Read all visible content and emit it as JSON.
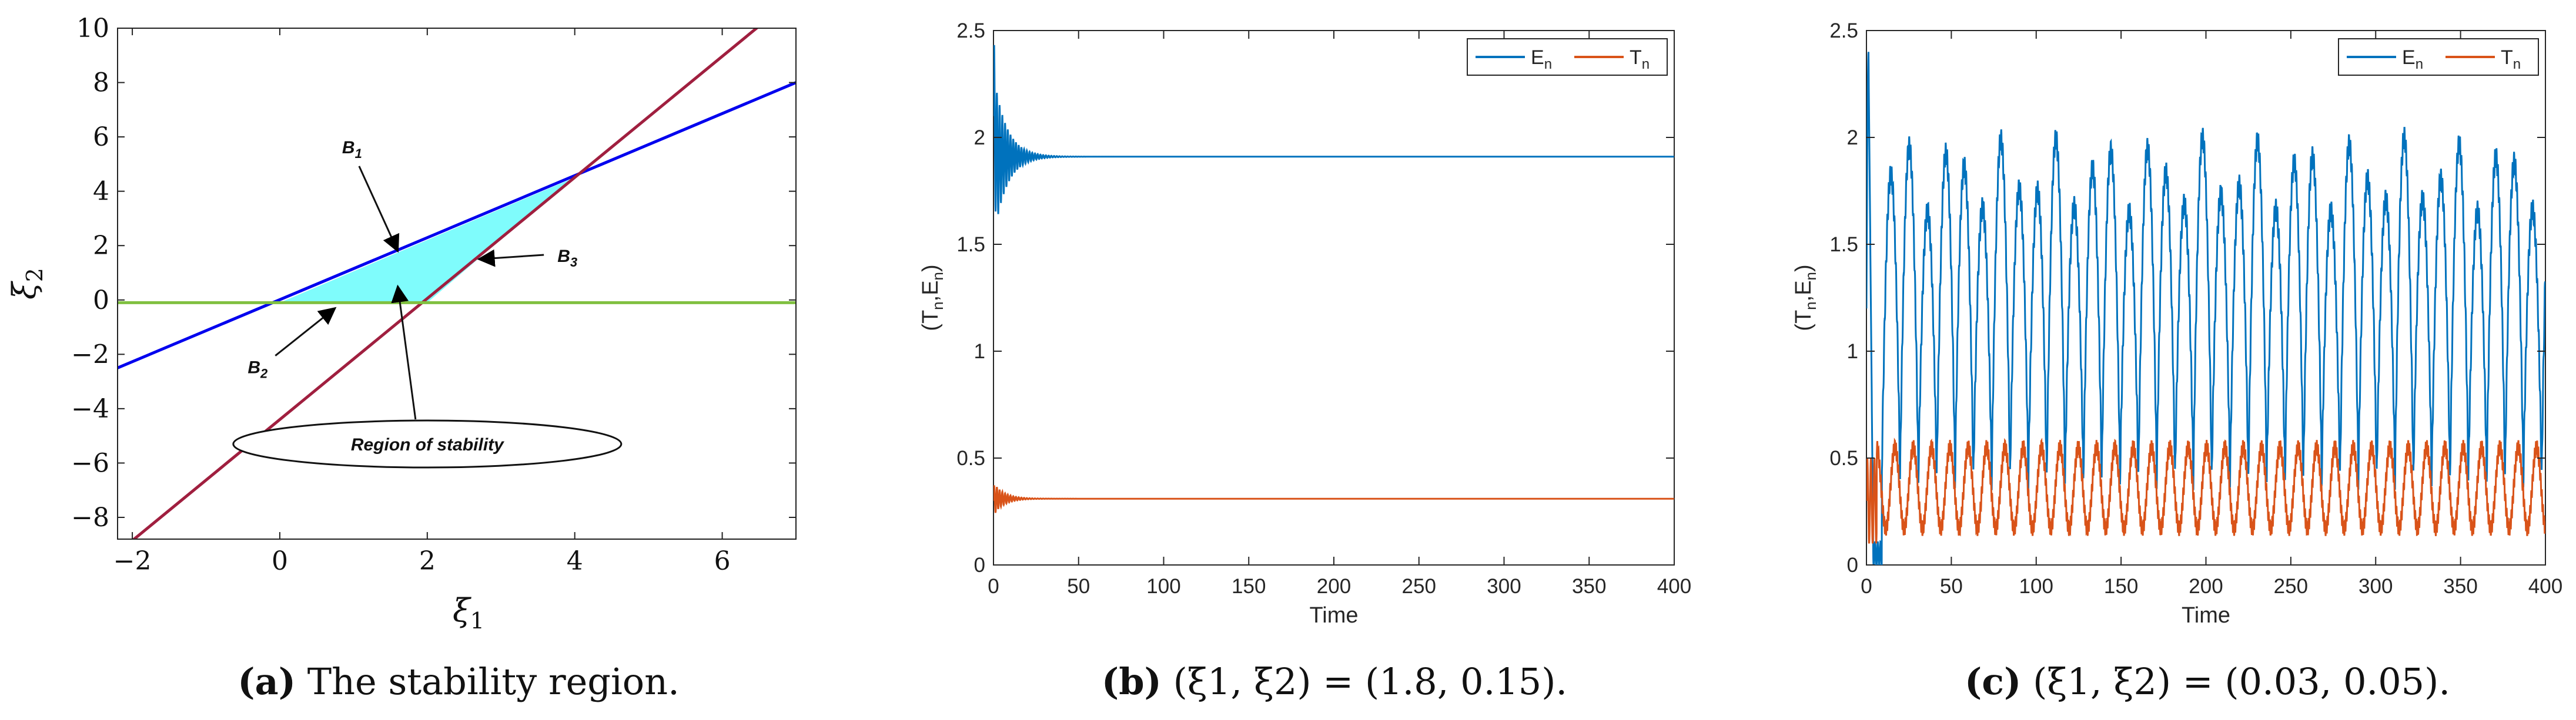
{
  "panels": {
    "a": {
      "tag": "a",
      "caption": "The stability region."
    },
    "b": {
      "tag": "b",
      "caption": "(ξ1, ξ2) = (1.8, 0.15)."
    },
    "c": {
      "tag": "c",
      "caption": "(ξ1, ξ2) = (0.03, 0.05)."
    }
  },
  "chart_data": [
    {
      "type": "line",
      "panel": "a",
      "xlabel": "ξ1",
      "ylabel": "ξ2",
      "xlim": [
        -2.2,
        7
      ],
      "ylim": [
        -8.8,
        10
      ],
      "xticks": [
        -2,
        0,
        2,
        4,
        6
      ],
      "yticks": [
        -8,
        -6,
        -4,
        -2,
        0,
        2,
        4,
        6,
        8,
        10
      ],
      "grid": false,
      "series": [
        {
          "name": "",
          "color": "#0000ee",
          "points": [
            [
              -2.2,
              -2.5
            ],
            [
              7,
              8
            ]
          ]
        },
        {
          "name": "",
          "color": "#a01f3f",
          "points": [
            [
              -2.2,
              -9.3
            ],
            [
              6.6,
              10.3
            ]
          ]
        },
        {
          "name": "",
          "color": "#80c040",
          "points": [
            [
              -2.2,
              -0.1
            ],
            [
              7,
              -0.1
            ]
          ]
        }
      ],
      "region": {
        "color": "#7ffcfc",
        "points": [
          [
            0,
            -0.1
          ],
          [
            2,
            -0.1
          ],
          [
            3.95,
            4.45
          ]
        ]
      },
      "annotations": [
        {
          "text": "B1",
          "subscript": "1",
          "label_at": [
            0.98,
            5.4
          ],
          "arrow_to": [
            1.6,
            1.8
          ]
        },
        {
          "text": "B2",
          "subscript": "2",
          "label_at": [
            -0.3,
            -2.7
          ],
          "arrow_to": [
            0.75,
            -0.3
          ]
        },
        {
          "text": "B3",
          "subscript": "3",
          "label_at": [
            3.9,
            1.4
          ],
          "arrow_to": [
            2.7,
            1.5
          ]
        },
        {
          "text": "Region of stability",
          "label_at": [
            2.0,
            -5.3
          ],
          "arrow_to": [
            1.6,
            0.5
          ],
          "boxed": true
        }
      ]
    },
    {
      "type": "line",
      "panel": "b",
      "xlabel": "Time",
      "ylabel": "(T",
      "ylabel_parts": [
        "(T",
        "n",
        ",E",
        "n",
        ")"
      ],
      "xlim": [
        0,
        400
      ],
      "ylim": [
        0,
        2.5
      ],
      "xticks": [
        0,
        50,
        100,
        150,
        200,
        250,
        300,
        350,
        400
      ],
      "yticks": [
        0,
        0.5,
        1,
        1.5,
        2,
        2.5
      ],
      "grid": false,
      "legend": {
        "placement": "top-right"
      },
      "series": [
        {
          "name": "E",
          "subscript": "n",
          "color": "#0072bd",
          "behavior": "damped oscillation",
          "initial": 2.1,
          "steady": 1.91,
          "peak_range": [
            1.62,
            2.4
          ],
          "settle_time": 30
        },
        {
          "name": "T",
          "subscript": "n",
          "color": "#d95319",
          "behavior": "damped oscillation",
          "initial": 0.3,
          "steady": 0.31,
          "peak_range": [
            0.22,
            0.37
          ],
          "settle_time": 25
        }
      ]
    },
    {
      "type": "line",
      "panel": "c",
      "xlabel": "Time",
      "ylabel": "(T",
      "ylabel_parts": [
        "(T",
        "n",
        ",E",
        "n",
        ")"
      ],
      "xlim": [
        0,
        400
      ],
      "ylim": [
        0,
        2.5
      ],
      "xticks": [
        0,
        50,
        100,
        150,
        200,
        250,
        300,
        350,
        400
      ],
      "yticks": [
        0,
        0.5,
        1,
        1.5,
        2,
        2.5
      ],
      "grid": false,
      "legend": {
        "placement": "top-right"
      },
      "series": [
        {
          "name": "E",
          "subscript": "n",
          "color": "#0072bd",
          "behavior": "sustained oscillation",
          "initial_peak": 2.4,
          "min": 0.05,
          "max_range": [
            1.65,
            2.0
          ],
          "trough": 0.4,
          "period": 10.8
        },
        {
          "name": "T",
          "subscript": "n",
          "color": "#d95319",
          "behavior": "sustained oscillation",
          "initial": 0.3,
          "min": 0.17,
          "max": 0.55,
          "period": 10.8
        }
      ]
    }
  ]
}
